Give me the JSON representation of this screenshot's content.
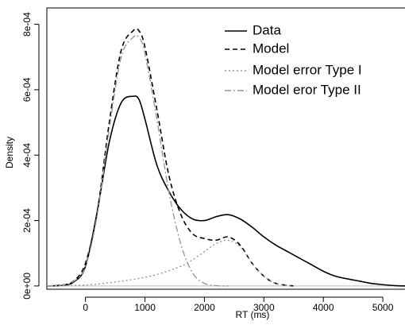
{
  "chart_data": {
    "type": "line",
    "title": "",
    "xlabel": "RT (ms)",
    "ylabel": "Density",
    "xlim": [
      -650,
      5400
    ],
    "ylim": [
      -1e-05,
      0.00085
    ],
    "x_ticks": [
      {
        "value": 0,
        "label": "0"
      },
      {
        "value": 1000,
        "label": "1000"
      },
      {
        "value": 2000,
        "label": "2000"
      },
      {
        "value": 3000,
        "label": "3000"
      },
      {
        "value": 4000,
        "label": "4000"
      },
      {
        "value": 5000,
        "label": "5000"
      }
    ],
    "y_ticks": [
      {
        "value": 0,
        "label": "0e+00"
      },
      {
        "value": 0.0002,
        "label": "2e-04"
      },
      {
        "value": 0.0004,
        "label": "4e-04"
      },
      {
        "value": 0.0006,
        "label": "6e-04"
      },
      {
        "value": 0.0008,
        "label": "8e-04"
      }
    ],
    "baseline": {
      "y": 0,
      "color": "#bbbbbb"
    },
    "grid": false,
    "legend_position": "top-right",
    "series": [
      {
        "name": "Data",
        "style": "solid",
        "color": "#000000",
        "x": [
          -650,
          -400,
          -200,
          0,
          200,
          400,
          600,
          800,
          900,
          1000,
          1200,
          1400,
          1600,
          1800,
          2000,
          2200,
          2400,
          2600,
          2800,
          3000,
          3200,
          3400,
          3600,
          3800,
          4000,
          4200,
          4400,
          4600,
          4800,
          5000,
          5200,
          5400
        ],
        "y": [
          0,
          2e-06,
          1.2e-05,
          6e-05,
          0.00023,
          0.00044,
          0.00056,
          0.00058,
          0.00057,
          0.00051,
          0.00037,
          0.00029,
          0.000235,
          0.000205,
          0.0002,
          0.000212,
          0.000218,
          0.000205,
          0.00018,
          0.00015,
          0.000125,
          0.000105,
          8.5e-05,
          6.5e-05,
          4.5e-05,
          3e-05,
          2.2e-05,
          1.5e-05,
          8e-06,
          4e-06,
          1e-06,
          0
        ]
      },
      {
        "name": "Model",
        "style": "dashed",
        "color": "#000000",
        "x": [
          -650,
          -400,
          -200,
          0,
          200,
          400,
          600,
          800,
          900,
          1000,
          1200,
          1400,
          1600,
          1800,
          2000,
          2200,
          2400,
          2600,
          2800,
          3000,
          3200,
          3500
        ],
        "y": [
          0,
          3e-06,
          1.5e-05,
          7e-05,
          0.00023,
          0.0005,
          0.00072,
          0.00078,
          0.00078,
          0.00073,
          0.00054,
          0.00034,
          0.00022,
          0.00016,
          0.000145,
          0.00014,
          0.00015,
          0.000125,
          7e-05,
          3e-05,
          8e-06,
          0
        ]
      },
      {
        "name": "Model error Type I",
        "style": "dotted",
        "color": "#999999",
        "x": [
          -650,
          0,
          400,
          800,
          1200,
          1600,
          1800,
          2000,
          2200,
          2400,
          2600,
          2800,
          3000,
          3200,
          3500
        ],
        "y": [
          0,
          3e-06,
          1e-05,
          2e-05,
          3.5e-05,
          6e-05,
          8e-05,
          0.000105,
          0.00013,
          0.00014,
          0.00012,
          7e-05,
          3e-05,
          8e-06,
          0
        ]
      },
      {
        "name": "Model eror Type II",
        "style": "dashdot",
        "color": "#999999",
        "x": [
          -650,
          -400,
          -200,
          0,
          200,
          400,
          600,
          800,
          900,
          1000,
          1200,
          1400,
          1600,
          1800,
          2000,
          2200,
          2400
        ],
        "y": [
          0,
          3e-06,
          1.4e-05,
          6e-05,
          0.00022,
          0.00048,
          0.0007,
          0.00076,
          0.00076,
          0.00071,
          0.00051,
          0.00029,
          0.00013,
          4e-05,
          8e-06,
          1e-06,
          0
        ]
      }
    ]
  }
}
